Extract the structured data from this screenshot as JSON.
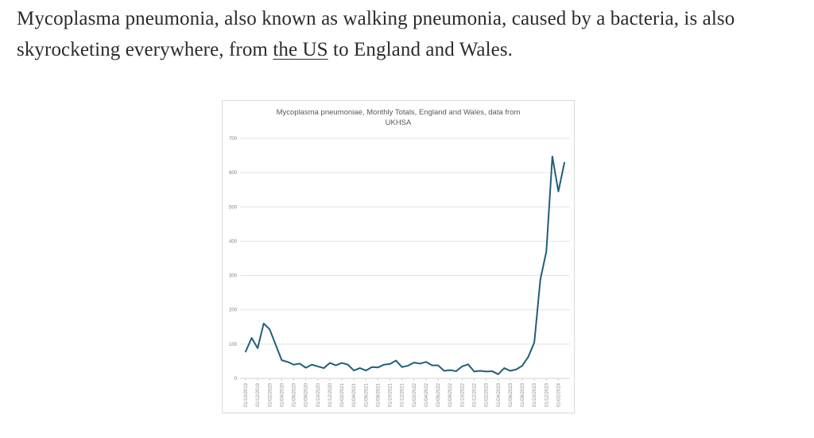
{
  "article": {
    "text_before": "Mycoplasma pneumonia, also known as walking pneumonia, caused by a bacteria, is also skyrocketing everywhere, from ",
    "link_text": "the US",
    "text_after": " to England and Wales."
  },
  "chart_data": {
    "type": "line",
    "title": "Mycoplasma pneumoniae, Monthly Totals, England and Wales, data from UKHSA",
    "title_line1": "Mycoplasma pneumoniae, Monthly Totals, England and Wales, data from",
    "title_line2": "UKHSA",
    "xlabel": "",
    "ylabel": "",
    "ylim": [
      0,
      700
    ],
    "yticks": [
      0,
      100,
      200,
      300,
      400,
      500,
      600,
      700
    ],
    "grid": true,
    "legend": "none",
    "line_color": "#1f5f7a",
    "x_tick_labels": [
      "01/10/2019",
      "01/12/2019",
      "01/02/2020",
      "01/04/2020",
      "01/06/2020",
      "01/08/2020",
      "01/10/2020",
      "01/12/2020",
      "01/02/2021",
      "01/04/2021",
      "01/06/2021",
      "01/08/2021",
      "01/10/2021",
      "01/12/2021",
      "01/02/2022",
      "01/04/2022",
      "01/06/2022",
      "01/08/2022",
      "01/10/2022",
      "01/12/2022",
      "01/02/2023",
      "01/04/2023",
      "01/06/2023",
      "01/08/2023",
      "01/10/2023",
      "01/12/2023",
      "01/02/2024"
    ],
    "x": [
      "01/10/2019",
      "01/11/2019",
      "01/12/2019",
      "01/01/2020",
      "01/02/2020",
      "01/03/2020",
      "01/04/2020",
      "01/05/2020",
      "01/06/2020",
      "01/07/2020",
      "01/08/2020",
      "01/09/2020",
      "01/10/2020",
      "01/11/2020",
      "01/12/2020",
      "01/01/2021",
      "01/02/2021",
      "01/03/2021",
      "01/04/2021",
      "01/05/2021",
      "01/06/2021",
      "01/07/2021",
      "01/08/2021",
      "01/09/2021",
      "01/10/2021",
      "01/11/2021",
      "01/12/2021",
      "01/01/2022",
      "01/02/2022",
      "01/03/2022",
      "01/04/2022",
      "01/05/2022",
      "01/06/2022",
      "01/07/2022",
      "01/08/2022",
      "01/09/2022",
      "01/10/2022",
      "01/11/2022",
      "01/12/2022",
      "01/01/2023",
      "01/02/2023",
      "01/03/2023",
      "01/04/2023",
      "01/05/2023",
      "01/06/2023",
      "01/07/2023",
      "01/08/2023",
      "01/09/2023",
      "01/10/2023",
      "01/11/2023",
      "01/12/2023",
      "01/01/2024",
      "01/02/2024",
      "01/03/2024"
    ],
    "values": [
      78,
      118,
      88,
      160,
      143,
      98,
      53,
      48,
      40,
      43,
      31,
      40,
      35,
      30,
      45,
      38,
      45,
      40,
      23,
      30,
      23,
      33,
      32,
      40,
      42,
      52,
      33,
      37,
      46,
      43,
      48,
      38,
      38,
      22,
      24,
      21,
      35,
      41,
      20,
      22,
      20,
      21,
      12,
      30,
      22,
      26,
      37,
      63,
      105,
      288,
      370,
      647,
      545,
      629
    ]
  }
}
